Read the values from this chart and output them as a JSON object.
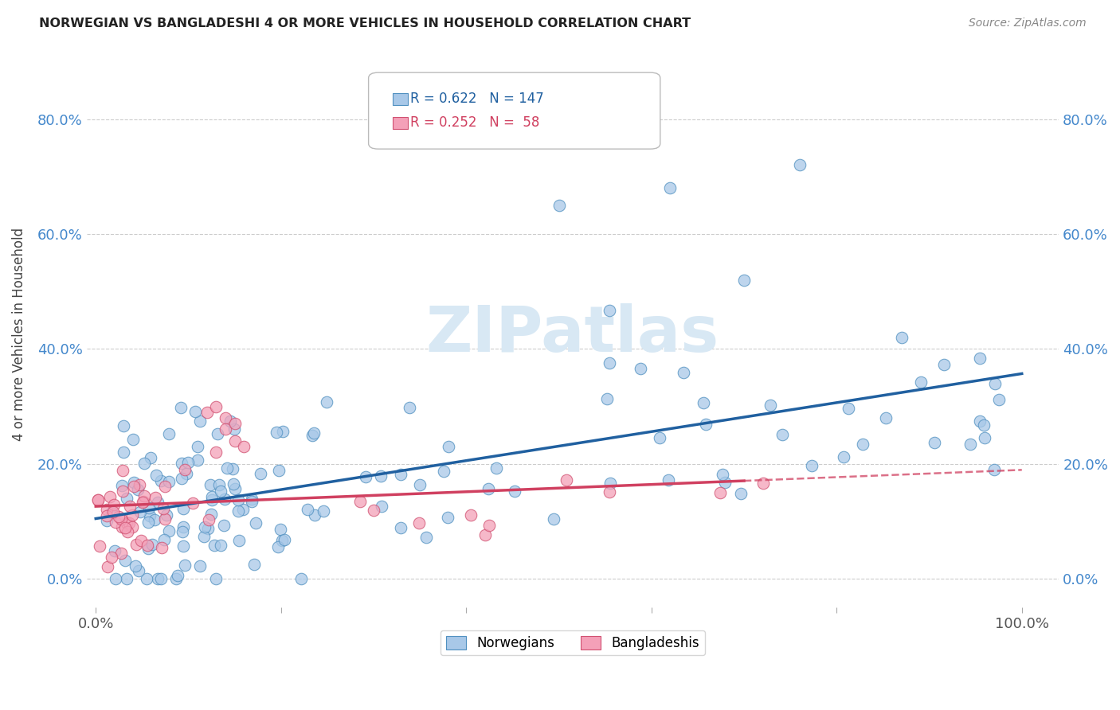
{
  "title": "NORWEGIAN VS BANGLADESHI 4 OR MORE VEHICLES IN HOUSEHOLD CORRELATION CHART",
  "source": "Source: ZipAtlas.com",
  "ylabel": "4 or more Vehicles in Household",
  "xlabel": "",
  "norwegian_R": 0.622,
  "norwegian_N": 147,
  "bangladeshi_R": 0.252,
  "bangladeshi_N": 58,
  "norwegian_color": "#A8C8E8",
  "bangladeshi_color": "#F4A0B8",
  "norwegian_edge_color": "#5090C0",
  "bangladeshi_edge_color": "#D05070",
  "norwegian_line_color": "#2060A0",
  "bangladeshi_line_color": "#D04060",
  "watermark_color": "#D8E8F4",
  "grid_color": "#CCCCCC",
  "tick_label_color": "#4488CC",
  "title_color": "#222222",
  "source_color": "#888888",
  "yticks": [
    0.0,
    0.2,
    0.4,
    0.6,
    0.8
  ],
  "xticks": [
    0.0,
    0.2,
    0.4,
    0.6,
    0.8,
    1.0
  ],
  "xlim": [
    -0.01,
    1.04
  ],
  "ylim": [
    -0.05,
    0.9
  ]
}
